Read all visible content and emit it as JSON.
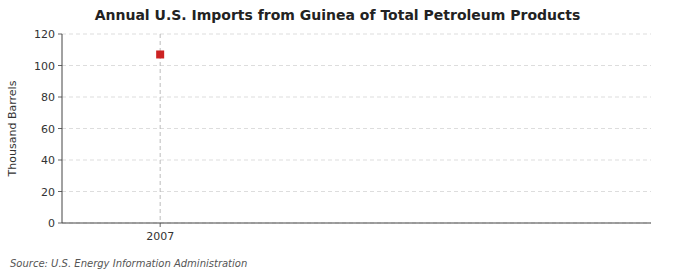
{
  "chart_data": {
    "type": "scatter",
    "title": "Annual U.S. Imports from Guinea of Total Petroleum Products",
    "ylabel": "Thousand Barrels",
    "source": "Source: U.S. Energy Information Administration",
    "x": [
      2007
    ],
    "values": [
      107
    ],
    "color": "#cc2222",
    "marker": "square",
    "xlim": [
      2006.7,
      2008.5
    ],
    "xticks": [
      2007
    ],
    "ylim": [
      0,
      120
    ],
    "yticks": [
      0,
      20,
      40,
      60,
      80,
      100,
      120
    ],
    "grid": true
  }
}
